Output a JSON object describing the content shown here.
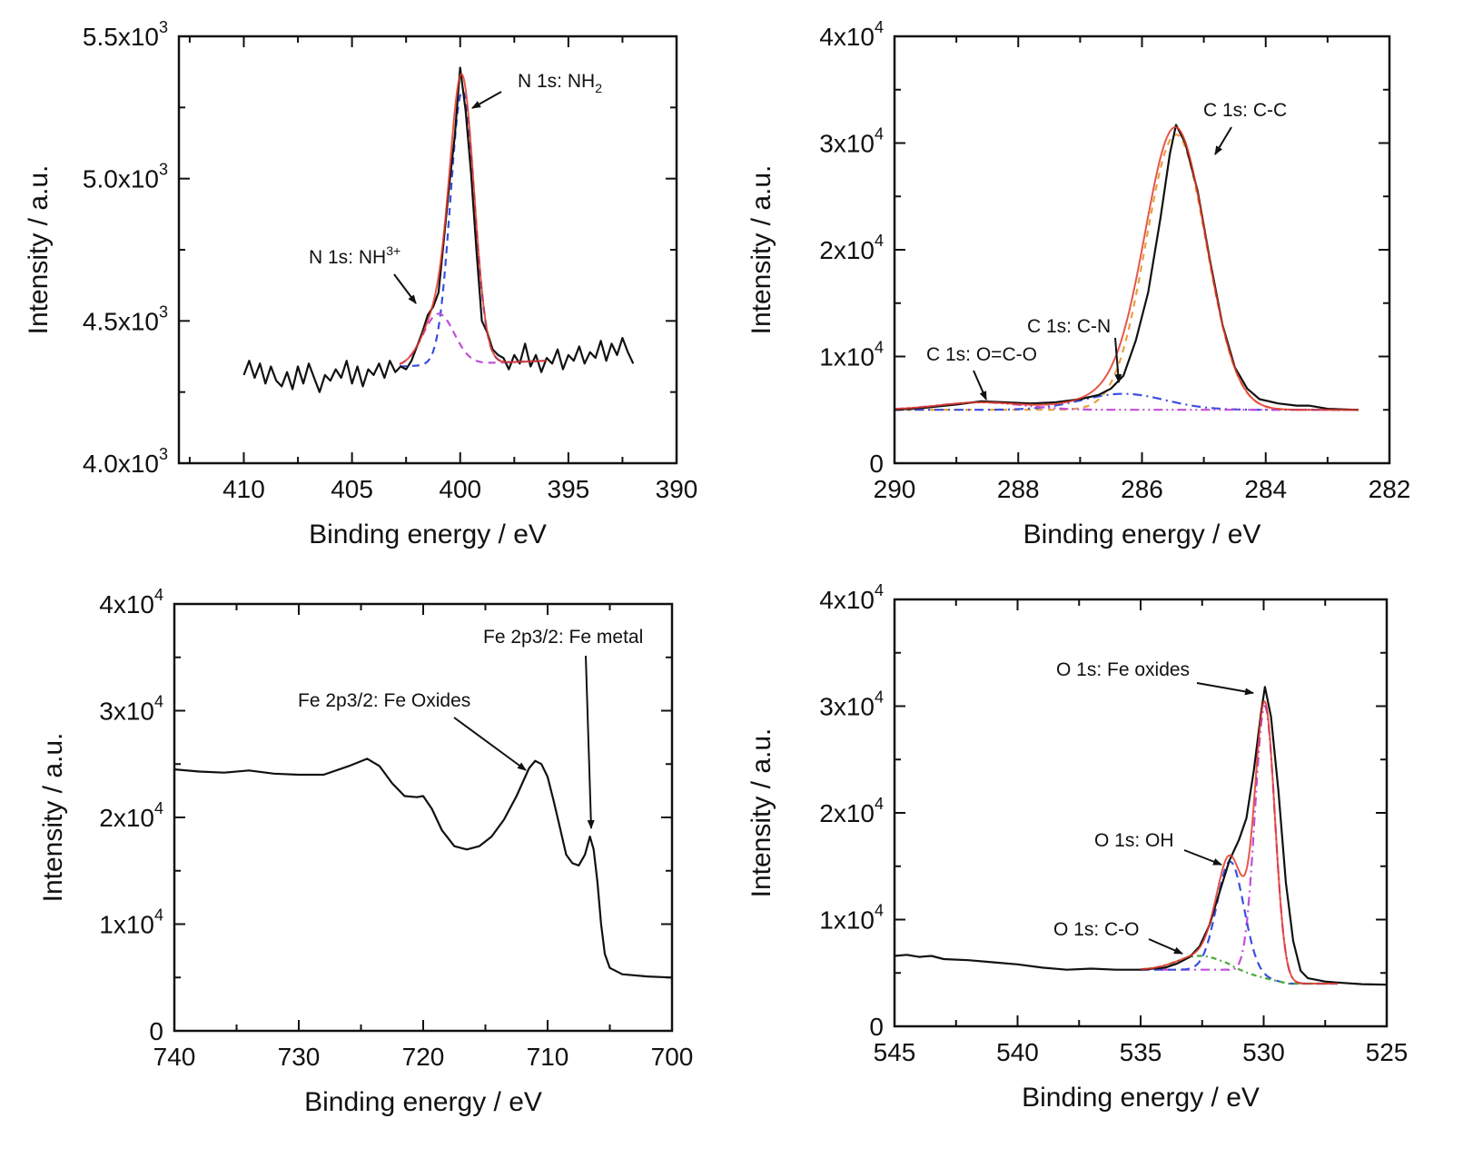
{
  "chart_data": [
    {
      "type": "line",
      "xlabel": "Binding energy / eV",
      "ylabel": "Intensity / a.u.",
      "xlim": [
        413,
        390
      ],
      "ylim": [
        4000,
        5500
      ],
      "xticks": [
        410,
        405,
        400,
        395,
        390
      ],
      "yticks": [
        {
          "value": 4000,
          "mant": "4.0x10",
          "exp": "3"
        },
        {
          "value": 4500,
          "mant": "4.5x10",
          "exp": "3"
        },
        {
          "value": 5000,
          "mant": "5.0x10",
          "exp": "3"
        },
        {
          "value": 5500,
          "mant": "5.5x10",
          "exp": "3"
        }
      ],
      "grid": false,
      "annotations": [
        {
          "text": "N 1s: NH",
          "sub": "2"
        },
        {
          "text": "N 1s: NH",
          "sup": "3+"
        }
      ],
      "baseline": [
        [
          402.8,
          4340
        ],
        [
          396,
          4360
        ]
      ],
      "components": [
        {
          "label": "NH2",
          "center": 399.9,
          "height": 960,
          "fwhm": 1.3,
          "color": "#3a4fe0",
          "dash": "8,6",
          "range": [
            402.8,
            396
          ]
        },
        {
          "label": "NH3+",
          "center": 401.0,
          "height": 180,
          "fwhm": 1.7,
          "color": "#c04fd8",
          "dash": "8,6",
          "range": [
            402.8,
            396
          ]
        }
      ],
      "fit": {
        "color": "#e03a2a",
        "range": [
          402.8,
          396
        ]
      },
      "experimental": {
        "color": "#111111",
        "points": [
          [
            410,
            4310
          ],
          [
            409.75,
            4360
          ],
          [
            409.5,
            4300
          ],
          [
            409.25,
            4350
          ],
          [
            409,
            4280
          ],
          [
            408.75,
            4340
          ],
          [
            408.5,
            4290
          ],
          [
            408.25,
            4270
          ],
          [
            408,
            4320
          ],
          [
            407.75,
            4260
          ],
          [
            407.5,
            4340
          ],
          [
            407.25,
            4280
          ],
          [
            407,
            4350
          ],
          [
            406.75,
            4300
          ],
          [
            406.5,
            4250
          ],
          [
            406.25,
            4310
          ],
          [
            406,
            4290
          ],
          [
            405.75,
            4330
          ],
          [
            405.5,
            4300
          ],
          [
            405.25,
            4360
          ],
          [
            405,
            4280
          ],
          [
            404.75,
            4340
          ],
          [
            404.5,
            4270
          ],
          [
            404.25,
            4330
          ],
          [
            404,
            4310
          ],
          [
            403.75,
            4350
          ],
          [
            403.5,
            4300
          ],
          [
            403.25,
            4360
          ],
          [
            403,
            4320
          ],
          [
            402.75,
            4340
          ],
          [
            402.5,
            4330
          ],
          [
            402.25,
            4360
          ],
          [
            402,
            4410
          ],
          [
            401.75,
            4460
          ],
          [
            401.5,
            4520
          ],
          [
            401.25,
            4550
          ],
          [
            401,
            4600
          ],
          [
            400.75,
            4790
          ],
          [
            400.5,
            4980
          ],
          [
            400.25,
            5150
          ],
          [
            400,
            5390
          ],
          [
            399.75,
            5240
          ],
          [
            399.5,
            5020
          ],
          [
            399.25,
            4750
          ],
          [
            399,
            4500
          ],
          [
            398.75,
            4460
          ],
          [
            398.5,
            4400
          ],
          [
            398.25,
            4380
          ],
          [
            398,
            4370
          ],
          [
            397.75,
            4330
          ],
          [
            397.5,
            4380
          ],
          [
            397.25,
            4350
          ],
          [
            397,
            4420
          ],
          [
            396.75,
            4340
          ],
          [
            396.5,
            4380
          ],
          [
            396.25,
            4320
          ],
          [
            396,
            4370
          ],
          [
            395.75,
            4350
          ],
          [
            395.5,
            4400
          ],
          [
            395.25,
            4330
          ],
          [
            395,
            4380
          ],
          [
            394.75,
            4360
          ],
          [
            394.5,
            4410
          ],
          [
            394.25,
            4350
          ],
          [
            394,
            4390
          ],
          [
            393.75,
            4370
          ],
          [
            393.5,
            4430
          ],
          [
            393.25,
            4360
          ],
          [
            393,
            4420
          ],
          [
            392.75,
            4380
          ],
          [
            392.5,
            4440
          ],
          [
            392.25,
            4390
          ],
          [
            392,
            4350
          ]
        ]
      }
    },
    {
      "type": "line",
      "xlabel": "Binding energy / eV",
      "ylabel": "Intensity / a.u.",
      "xlim": [
        290,
        282
      ],
      "ylim": [
        0,
        40000
      ],
      "xticks": [
        290,
        288,
        286,
        284,
        282
      ],
      "yticks": [
        {
          "value": 0,
          "mant": "0",
          "exp": ""
        },
        {
          "value": 10000,
          "mant": "1x10",
          "exp": "4"
        },
        {
          "value": 20000,
          "mant": "2x10",
          "exp": "4"
        },
        {
          "value": 30000,
          "mant": "3x10",
          "exp": "4"
        },
        {
          "value": 40000,
          "mant": "4x10",
          "exp": "4"
        }
      ],
      "grid": false,
      "annotations": [
        {
          "text": "C 1s: C-C"
        },
        {
          "text": "C 1s:  C-N"
        },
        {
          "text": "C 1s: O=C-O"
        }
      ],
      "baseline": [
        [
          290,
          5000
        ],
        [
          282.5,
          5000
        ]
      ],
      "components": [
        {
          "label": "C-C",
          "center": 285.45,
          "height": 25800,
          "fwhm": 1.15,
          "color": "#e8a040",
          "dash": "7,6",
          "range": [
            290,
            282.5
          ]
        },
        {
          "label": "C-N",
          "center": 286.3,
          "height": 1500,
          "fwhm": 1.6,
          "color": "#3a4fe0",
          "dash": "10,5,2,5",
          "range": [
            290,
            282.5
          ]
        },
        {
          "label": "O=C-O",
          "center": 288.6,
          "height": 700,
          "fwhm": 1.6,
          "color": "#c04fd8",
          "dash": "10,4,2,4,2,4",
          "range": [
            290,
            282.5
          ]
        }
      ],
      "fit": {
        "color": "#e03a2a",
        "range": [
          290,
          282.5
        ]
      },
      "experimental": {
        "color": "#111111",
        "points": [
          [
            290,
            5000
          ],
          [
            289.5,
            5200
          ],
          [
            289,
            5500
          ],
          [
            288.6,
            5800
          ],
          [
            288.2,
            5700
          ],
          [
            287.8,
            5600
          ],
          [
            287.4,
            5700
          ],
          [
            287,
            6000
          ],
          [
            286.7,
            6400
          ],
          [
            286.5,
            7000
          ],
          [
            286.3,
            8200
          ],
          [
            286.1,
            11500
          ],
          [
            285.9,
            16000
          ],
          [
            285.7,
            23000
          ],
          [
            285.55,
            29000
          ],
          [
            285.45,
            31700
          ],
          [
            285.3,
            30000
          ],
          [
            285.1,
            25500
          ],
          [
            284.9,
            19000
          ],
          [
            284.7,
            13000
          ],
          [
            284.5,
            9000
          ],
          [
            284.3,
            7000
          ],
          [
            284.1,
            6000
          ],
          [
            283.8,
            5600
          ],
          [
            283.5,
            5400
          ],
          [
            283.3,
            5400
          ],
          [
            283,
            5100
          ],
          [
            282.5,
            5000
          ]
        ]
      }
    },
    {
      "type": "line",
      "xlabel": "Binding energy / eV",
      "ylabel": "Intensity / a.u.",
      "xlim": [
        740,
        700
      ],
      "ylim": [
        0,
        40000
      ],
      "xticks": [
        740,
        730,
        720,
        710,
        700
      ],
      "yticks": [
        {
          "value": 0,
          "mant": "0",
          "exp": ""
        },
        {
          "value": 10000,
          "mant": "1x10",
          "exp": "4"
        },
        {
          "value": 20000,
          "mant": "2x10",
          "exp": "4"
        },
        {
          "value": 30000,
          "mant": "3x10",
          "exp": "4"
        },
        {
          "value": 40000,
          "mant": "4x10",
          "exp": "4"
        }
      ],
      "grid": false,
      "annotations": [
        {
          "text": "Fe 2p3/2: Fe metal"
        },
        {
          "text": "Fe 2p3/2: Fe Oxides"
        }
      ],
      "components": [],
      "experimental": {
        "color": "#111111",
        "points": [
          [
            740,
            24500
          ],
          [
            738,
            24300
          ],
          [
            736,
            24200
          ],
          [
            734,
            24400
          ],
          [
            732,
            24100
          ],
          [
            730,
            24000
          ],
          [
            728,
            24000
          ],
          [
            726,
            24800
          ],
          [
            724.5,
            25500
          ],
          [
            723.5,
            24800
          ],
          [
            722.5,
            23200
          ],
          [
            721.5,
            22000
          ],
          [
            720.5,
            21900
          ],
          [
            720,
            22000
          ],
          [
            719.3,
            20800
          ],
          [
            718.5,
            18800
          ],
          [
            717.5,
            17300
          ],
          [
            716.5,
            17000
          ],
          [
            715.5,
            17300
          ],
          [
            714.5,
            18200
          ],
          [
            713.5,
            19800
          ],
          [
            712.5,
            22000
          ],
          [
            711.5,
            24600
          ],
          [
            711,
            25300
          ],
          [
            710.5,
            25000
          ],
          [
            710,
            23800
          ],
          [
            709.5,
            21500
          ],
          [
            709,
            19000
          ],
          [
            708.5,
            16500
          ],
          [
            708,
            15700
          ],
          [
            707.5,
            15500
          ],
          [
            707,
            16500
          ],
          [
            706.6,
            18200
          ],
          [
            706.3,
            17000
          ],
          [
            706,
            14000
          ],
          [
            705.7,
            10000
          ],
          [
            705.4,
            7200
          ],
          [
            705,
            5900
          ],
          [
            704,
            5300
          ],
          [
            702,
            5100
          ],
          [
            700,
            5000
          ]
        ]
      }
    },
    {
      "type": "line",
      "xlabel": "Binding energy / eV",
      "ylabel": "Intensity / a.u.",
      "xlim": [
        545,
        525
      ],
      "ylim": [
        0,
        40000
      ],
      "xticks": [
        545,
        540,
        535,
        530,
        525
      ],
      "yticks": [
        {
          "value": 0,
          "mant": "0",
          "exp": ""
        },
        {
          "value": 10000,
          "mant": "1x10",
          "exp": "4"
        },
        {
          "value": 20000,
          "mant": "2x10",
          "exp": "4"
        },
        {
          "value": 30000,
          "mant": "3x10",
          "exp": "4"
        },
        {
          "value": 40000,
          "mant": "4x10",
          "exp": "4"
        }
      ],
      "grid": false,
      "annotations": [
        {
          "text": "O 1s: Fe oxides"
        },
        {
          "text": "O 1s: OH"
        },
        {
          "text": "O 1s: C-O"
        }
      ],
      "baseline": [
        [
          535,
          5300
        ],
        [
          531.5,
          5300
        ],
        [
          529,
          4000
        ],
        [
          527,
          4000
        ]
      ],
      "components": [
        {
          "label": "Fe oxides",
          "center": 529.95,
          "height": 25500,
          "fwhm": 0.95,
          "color": "#c04fd8",
          "dash": "10,5,2,5",
          "range": [
            535,
            527
          ]
        },
        {
          "label": "OH",
          "center": 531.35,
          "height": 10200,
          "fwhm": 1.3,
          "color": "#3a4fe0",
          "dash": "9,6",
          "range": [
            535,
            527
          ]
        },
        {
          "label": "C-O",
          "center": 532.6,
          "height": 1300,
          "fwhm": 2.2,
          "color": "#4aa83a",
          "dash": "6,4,2,4",
          "range": [
            535,
            527
          ]
        }
      ],
      "fit": {
        "color": "#e03a2a",
        "range": [
          535,
          527
        ]
      },
      "experimental": {
        "color": "#111111",
        "points": [
          [
            545,
            6600
          ],
          [
            544.5,
            6700
          ],
          [
            544,
            6500
          ],
          [
            543.5,
            6600
          ],
          [
            543,
            6300
          ],
          [
            542,
            6200
          ],
          [
            541,
            6000
          ],
          [
            540,
            5800
          ],
          [
            539,
            5500
          ],
          [
            538,
            5300
          ],
          [
            537,
            5400
          ],
          [
            536,
            5300
          ],
          [
            535,
            5300
          ],
          [
            534,
            5500
          ],
          [
            533.5,
            5900
          ],
          [
            533,
            6500
          ],
          [
            532.6,
            7500
          ],
          [
            532.2,
            9500
          ],
          [
            531.8,
            12500
          ],
          [
            531.4,
            15500
          ],
          [
            531,
            17500
          ],
          [
            530.7,
            19500
          ],
          [
            530.4,
            24000
          ],
          [
            530.1,
            29500
          ],
          [
            529.95,
            31800
          ],
          [
            529.7,
            29000
          ],
          [
            529.4,
            22000
          ],
          [
            529.1,
            13500
          ],
          [
            528.8,
            8000
          ],
          [
            528.5,
            5200
          ],
          [
            528.2,
            4500
          ],
          [
            527.5,
            4200
          ],
          [
            527,
            4100
          ],
          [
            526,
            3950
          ],
          [
            525,
            3900
          ]
        ]
      }
    }
  ]
}
